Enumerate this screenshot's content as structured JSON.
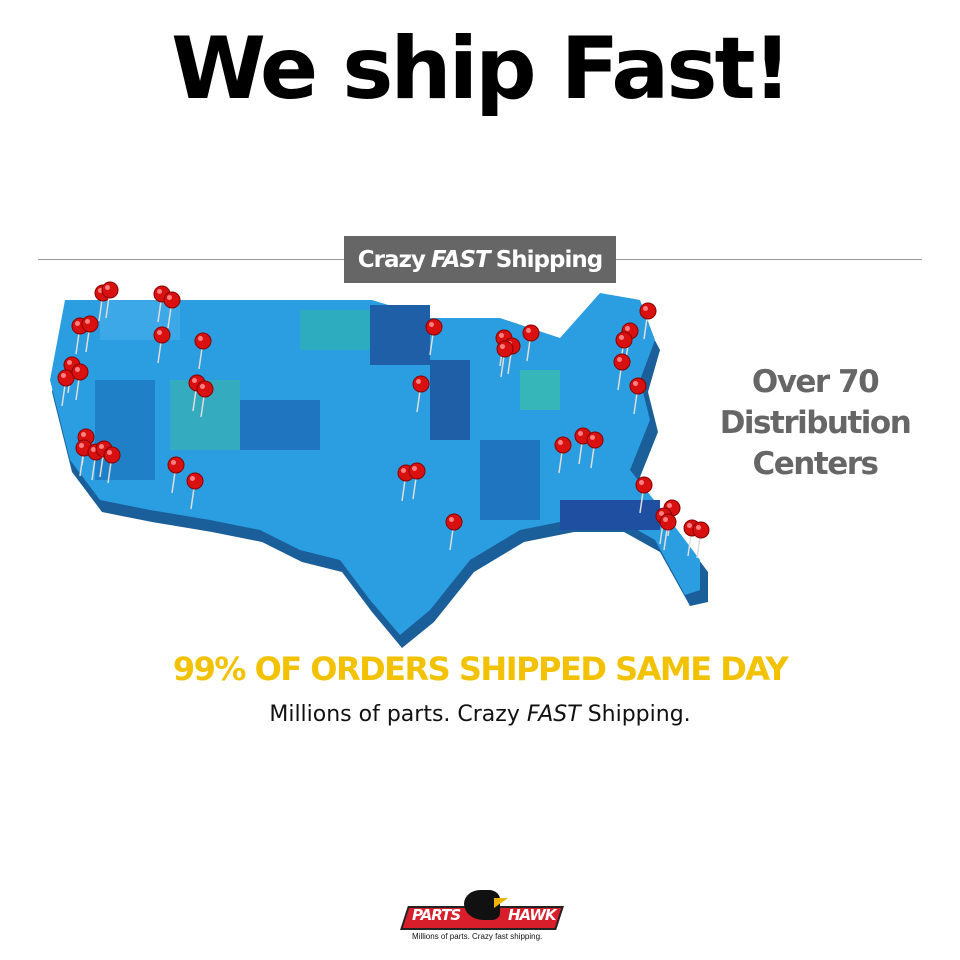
{
  "headline": "We ship Fast!",
  "badge": {
    "part1": "Crazy",
    "part2": "FAST",
    "part3": "Shipping"
  },
  "centers": {
    "line1": "Over 70",
    "line2": "Distribution",
    "line3": "Centers"
  },
  "tagline_main": "99% OF ORDERS SHIPPED SAME DAY",
  "tagline_sub": {
    "part1": "Millions of parts. Crazy",
    "part2": "FAST",
    "part3": "Shipping."
  },
  "logo": {
    "left": "PARTS",
    "right": "HAWK",
    "tag": "Millions of parts. Crazy fast shipping."
  },
  "colors": {
    "map": "#2a9ee0",
    "pin": "#d81010",
    "yellow": "#f2c200",
    "badge": "#666666",
    "logo_red": "#d81e2a"
  },
  "icons": {
    "pin": "map-pin-icon",
    "logo": "parts-hawk-logo"
  }
}
